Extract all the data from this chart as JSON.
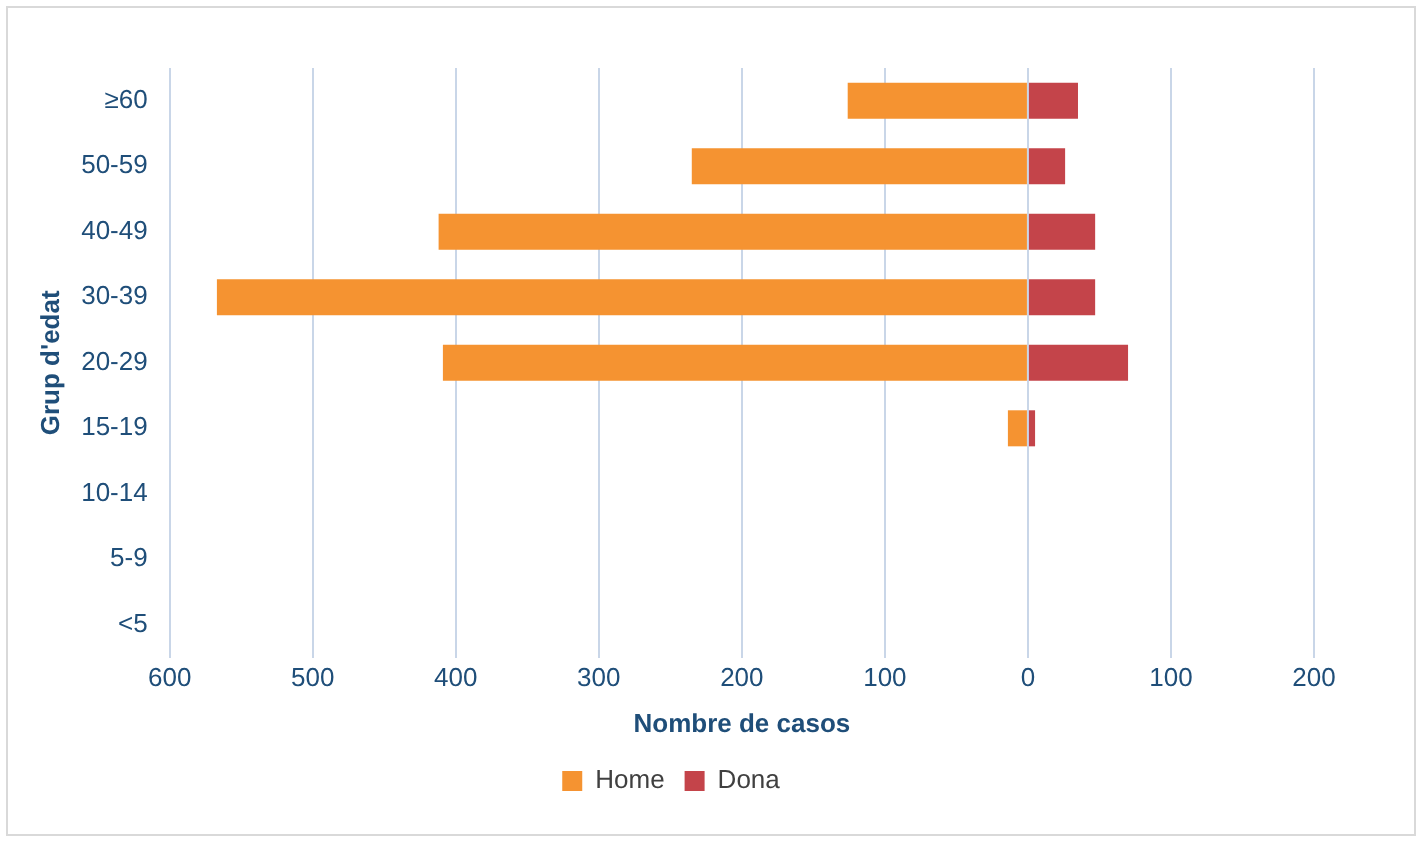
{
  "chart_data": {
    "type": "bar",
    "orientation": "horizontal",
    "stacked": true,
    "categories": [
      "≥60",
      "50-59",
      "40-49",
      "30-39",
      "20-29",
      "15-19",
      "10-14",
      "5-9",
      "<5"
    ],
    "series": [
      {
        "name": "Home",
        "color": "#f59331",
        "values": [
          -126,
          -235,
          -412,
          -567,
          -409,
          -14,
          0,
          0,
          0
        ]
      },
      {
        "name": "Dona",
        "color": "#c4444a",
        "values": [
          35,
          26,
          47,
          47,
          70,
          5,
          0,
          0,
          0
        ]
      }
    ],
    "xlim": [
      -600,
      200
    ],
    "xticks": [
      {
        "value": -600,
        "label": "600"
      },
      {
        "value": -500,
        "label": "500"
      },
      {
        "value": -400,
        "label": "400"
      },
      {
        "value": -300,
        "label": "300"
      },
      {
        "value": -200,
        "label": "200"
      },
      {
        "value": -100,
        "label": "100"
      },
      0,
      100,
      200
    ],
    "xlabel": "Nombre de casos",
    "ylabel": "Grup d'edat",
    "grid": "x",
    "legend": "bottom"
  }
}
